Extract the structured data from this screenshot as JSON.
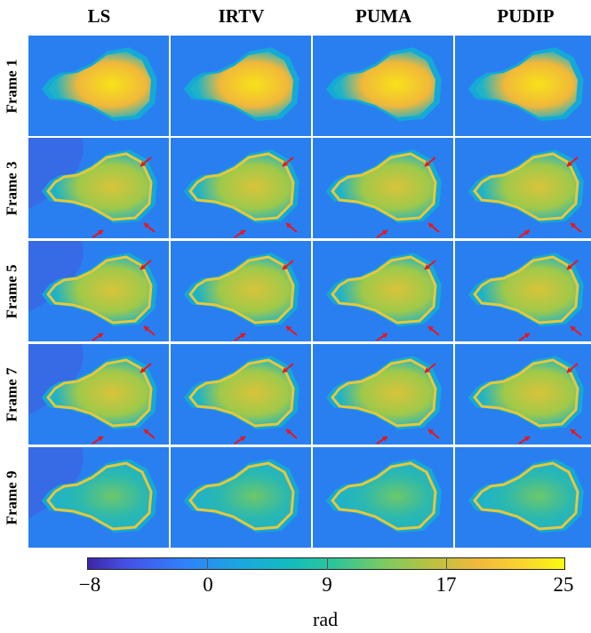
{
  "columns": [
    "LS",
    "IRTV",
    "PUMA",
    "PUDIP"
  ],
  "rows": [
    "Frame 1",
    "Frame 3",
    "Frame 5",
    "Frame 7",
    "Frame 9"
  ],
  "colorbar": {
    "ticks": [
      "−8",
      "0",
      "9",
      "17",
      "25"
    ],
    "unit": "rad"
  },
  "colors": {
    "background_phase": "#2a7ff0",
    "arrow": "#e8151b"
  }
}
